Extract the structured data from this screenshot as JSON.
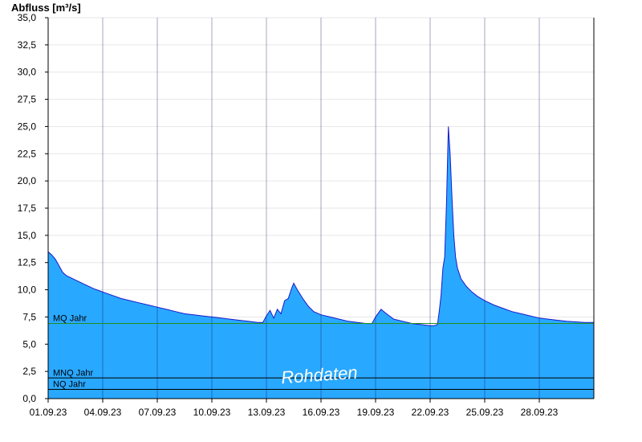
{
  "chart_data": {
    "type": "area",
    "ylabel": "Abfluss [m³/s]",
    "ylim": [
      0,
      35
    ],
    "yticks": [
      "0,0",
      "2,5",
      "5,0",
      "7,5",
      "10,0",
      "12,5",
      "15,0",
      "17,5",
      "20,0",
      "22,5",
      "25,0",
      "27,5",
      "30,0",
      "32,5",
      "35,0"
    ],
    "xlim": [
      0,
      30
    ],
    "xticks": [
      {
        "x": 0,
        "label": "01.09.23"
      },
      {
        "x": 3,
        "label": "04.09.23"
      },
      {
        "x": 6,
        "label": "07.09.23"
      },
      {
        "x": 9,
        "label": "10.09.23"
      },
      {
        "x": 12,
        "label": "13.09.23"
      },
      {
        "x": 15,
        "label": "16.09.23"
      },
      {
        "x": 18,
        "label": "19.09.23"
      },
      {
        "x": 21,
        "label": "22.09.23"
      },
      {
        "x": 24,
        "label": "25.09.23"
      },
      {
        "x": 27,
        "label": "28.09.23"
      }
    ],
    "grid": true,
    "series": [
      {
        "x": [
          0,
          0.2,
          0.4,
          0.6,
          0.8,
          1.0,
          1.5,
          2.0,
          2.5,
          3.0,
          3.5,
          4.0,
          4.5,
          5.0,
          5.5,
          6.0,
          6.5,
          7.0,
          7.5,
          8.0,
          8.5,
          9.0,
          9.5,
          10.0,
          10.5,
          11.0,
          11.5,
          11.8,
          12.0,
          12.2,
          12.4,
          12.6,
          12.8,
          13.0,
          13.2,
          13.4,
          13.5,
          13.7,
          14.0,
          14.3,
          14.6,
          15.0,
          15.5,
          16.0,
          16.5,
          17.0,
          17.5,
          17.8,
          18.0,
          18.3,
          18.6,
          19.0,
          19.5,
          20.0,
          20.5,
          21.0,
          21.2,
          21.4,
          21.5,
          21.6,
          21.7,
          21.8,
          21.9,
          22.0,
          22.1,
          22.2,
          22.3,
          22.4,
          22.5,
          22.7,
          23.0,
          23.3,
          23.6,
          24.0,
          24.5,
          25.0,
          25.5,
          26.0,
          26.5,
          27.0,
          27.5,
          28.0,
          28.5,
          29.0,
          29.5,
          30.0
        ],
        "y": [
          13.5,
          13.2,
          12.8,
          12.2,
          11.6,
          11.3,
          10.9,
          10.5,
          10.1,
          9.8,
          9.5,
          9.2,
          9.0,
          8.8,
          8.6,
          8.4,
          8.2,
          8.0,
          7.8,
          7.7,
          7.6,
          7.5,
          7.4,
          7.3,
          7.2,
          7.1,
          7.0,
          7.0,
          7.6,
          8.1,
          7.4,
          8.2,
          7.8,
          9.0,
          9.2,
          10.2,
          10.6,
          10.0,
          9.2,
          8.5,
          8.0,
          7.7,
          7.5,
          7.3,
          7.1,
          7.0,
          6.9,
          6.9,
          7.5,
          8.2,
          7.8,
          7.3,
          7.1,
          6.9,
          6.8,
          6.7,
          6.7,
          6.8,
          8.0,
          9.5,
          12.0,
          13.0,
          18.0,
          25.0,
          22.5,
          18.5,
          15.0,
          13.0,
          12.0,
          11.0,
          10.3,
          9.8,
          9.4,
          9.0,
          8.6,
          8.3,
          8.0,
          7.8,
          7.6,
          7.4,
          7.3,
          7.2,
          7.1,
          7.05,
          7.0,
          7.0
        ],
        "color": "#29a8ff",
        "line_color": "#1a1acc"
      }
    ],
    "reference_lines": [
      {
        "label": "MQ Jahr",
        "y": 6.9,
        "color": "#1f8f1f"
      },
      {
        "label": "MNQ Jahr",
        "y": 1.9,
        "color": "#000000"
      },
      {
        "label": "NQ Jahr",
        "y": 0.85,
        "color": "#000000"
      }
    ],
    "watermark": "Rohdaten"
  }
}
